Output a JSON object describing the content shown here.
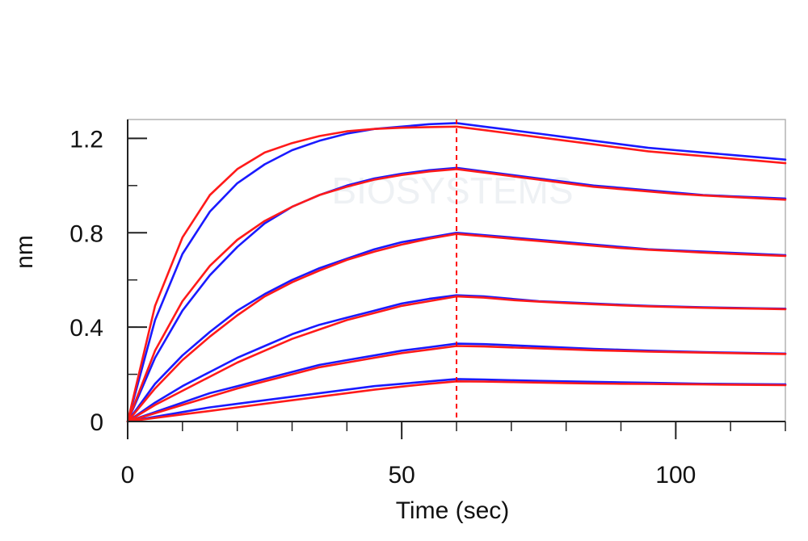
{
  "chart_data": {
    "type": "line",
    "title": "",
    "xlabel": "Time (sec)",
    "ylabel": "nm",
    "xlim": [
      0,
      120
    ],
    "ylim": [
      0,
      1.28
    ],
    "x_ticks": [
      0,
      50,
      100
    ],
    "x_tick_labels": [
      "0",
      "50",
      "100"
    ],
    "y_ticks": [
      0,
      0.4,
      0.8,
      1.2
    ],
    "y_tick_labels": [
      "0",
      "0.4",
      "0.8",
      "1.2"
    ],
    "x_minor_step": 10,
    "y_minor_step": 0.2,
    "grid": false,
    "legend": "none",
    "annotations": [
      {
        "type": "vertical-dashed-line",
        "x": 60,
        "color": "#ff0000",
        "meaning": "association/dissociation boundary"
      }
    ],
    "watermark": "BIOSYSTEMS",
    "colors": {
      "measured": "#1a1aff",
      "fit": "#ff1a1a",
      "marker": "#ff0000"
    },
    "series": [
      {
        "kind": "measured",
        "values": {
          "time": [
            0,
            5,
            10,
            15,
            20,
            25,
            30,
            35,
            40,
            45,
            50,
            55,
            60,
            65,
            70,
            75,
            80,
            85,
            90,
            95,
            100,
            105,
            110,
            115,
            120
          ],
          "nm": [
            0.0,
            0.43,
            0.71,
            0.89,
            1.01,
            1.09,
            1.15,
            1.19,
            1.22,
            1.24,
            1.25,
            1.26,
            1.265,
            1.25,
            1.235,
            1.22,
            1.205,
            1.19,
            1.175,
            1.16,
            1.15,
            1.14,
            1.13,
            1.12,
            1.11
          ]
        }
      },
      {
        "kind": "fit",
        "values": {
          "time": [
            0,
            5,
            10,
            15,
            20,
            25,
            30,
            35,
            40,
            45,
            50,
            55,
            60,
            65,
            70,
            75,
            80,
            85,
            90,
            95,
            100,
            105,
            110,
            115,
            120
          ],
          "nm": [
            0.0,
            0.49,
            0.78,
            0.96,
            1.07,
            1.14,
            1.18,
            1.21,
            1.23,
            1.24,
            1.245,
            1.248,
            1.25,
            1.235,
            1.22,
            1.205,
            1.19,
            1.175,
            1.16,
            1.145,
            1.135,
            1.125,
            1.115,
            1.105,
            1.095
          ]
        }
      },
      {
        "kind": "measured",
        "values": {
          "time": [
            0,
            5,
            10,
            15,
            20,
            25,
            30,
            35,
            40,
            45,
            50,
            55,
            60,
            65,
            70,
            75,
            80,
            85,
            90,
            95,
            100,
            105,
            110,
            115,
            120
          ],
          "nm": [
            0.0,
            0.27,
            0.47,
            0.62,
            0.74,
            0.84,
            0.91,
            0.96,
            1.0,
            1.03,
            1.05,
            1.065,
            1.075,
            1.06,
            1.045,
            1.03,
            1.015,
            1.0,
            0.99,
            0.98,
            0.97,
            0.96,
            0.955,
            0.95,
            0.945
          ]
        }
      },
      {
        "kind": "fit",
        "values": {
          "time": [
            0,
            5,
            10,
            15,
            20,
            25,
            30,
            35,
            40,
            45,
            50,
            55,
            60,
            65,
            70,
            75,
            80,
            85,
            90,
            95,
            100,
            105,
            110,
            115,
            120
          ],
          "nm": [
            0.0,
            0.3,
            0.51,
            0.66,
            0.77,
            0.85,
            0.91,
            0.96,
            0.995,
            1.025,
            1.045,
            1.06,
            1.07,
            1.055,
            1.04,
            1.025,
            1.01,
            0.995,
            0.985,
            0.975,
            0.965,
            0.958,
            0.952,
            0.946,
            0.94
          ]
        }
      },
      {
        "kind": "measured",
        "values": {
          "time": [
            0,
            5,
            10,
            15,
            20,
            25,
            30,
            35,
            40,
            45,
            50,
            55,
            60,
            65,
            70,
            75,
            80,
            85,
            90,
            95,
            100,
            105,
            110,
            115,
            120
          ],
          "nm": [
            0.0,
            0.16,
            0.28,
            0.38,
            0.47,
            0.54,
            0.6,
            0.65,
            0.69,
            0.73,
            0.76,
            0.78,
            0.8,
            0.79,
            0.78,
            0.77,
            0.76,
            0.75,
            0.74,
            0.73,
            0.725,
            0.72,
            0.715,
            0.71,
            0.705
          ]
        }
      },
      {
        "kind": "fit",
        "values": {
          "time": [
            0,
            5,
            10,
            15,
            20,
            25,
            30,
            35,
            40,
            45,
            50,
            55,
            60,
            65,
            70,
            75,
            80,
            85,
            90,
            95,
            100,
            105,
            110,
            115,
            120
          ],
          "nm": [
            0.0,
            0.14,
            0.26,
            0.36,
            0.45,
            0.53,
            0.59,
            0.64,
            0.685,
            0.72,
            0.75,
            0.775,
            0.795,
            0.785,
            0.775,
            0.765,
            0.755,
            0.745,
            0.735,
            0.728,
            0.722,
            0.716,
            0.711,
            0.706,
            0.702
          ]
        }
      },
      {
        "kind": "measured",
        "values": {
          "time": [
            0,
            5,
            10,
            15,
            20,
            25,
            30,
            35,
            40,
            45,
            50,
            55,
            60,
            65,
            70,
            75,
            80,
            85,
            90,
            95,
            100,
            105,
            110,
            115,
            120
          ],
          "nm": [
            0.0,
            0.08,
            0.15,
            0.21,
            0.27,
            0.32,
            0.37,
            0.41,
            0.44,
            0.47,
            0.5,
            0.52,
            0.535,
            0.53,
            0.52,
            0.51,
            0.505,
            0.5,
            0.495,
            0.49,
            0.487,
            0.484,
            0.482,
            0.48,
            0.478
          ]
        }
      },
      {
        "kind": "fit",
        "values": {
          "time": [
            0,
            5,
            10,
            15,
            20,
            25,
            30,
            35,
            40,
            45,
            50,
            55,
            60,
            65,
            70,
            75,
            80,
            85,
            90,
            95,
            100,
            105,
            110,
            115,
            120
          ],
          "nm": [
            0.0,
            0.07,
            0.13,
            0.19,
            0.25,
            0.3,
            0.35,
            0.39,
            0.43,
            0.46,
            0.49,
            0.51,
            0.53,
            0.525,
            0.515,
            0.508,
            0.502,
            0.497,
            0.492,
            0.488,
            0.485,
            0.482,
            0.48,
            0.478,
            0.476
          ]
        }
      },
      {
        "kind": "measured",
        "values": {
          "time": [
            0,
            5,
            10,
            15,
            20,
            25,
            30,
            35,
            40,
            45,
            50,
            55,
            60,
            65,
            70,
            75,
            80,
            85,
            90,
            95,
            100,
            105,
            110,
            115,
            120
          ],
          "nm": [
            0.0,
            0.04,
            0.08,
            0.12,
            0.15,
            0.18,
            0.21,
            0.24,
            0.26,
            0.28,
            0.3,
            0.315,
            0.33,
            0.328,
            0.323,
            0.318,
            0.313,
            0.308,
            0.304,
            0.3,
            0.297,
            0.294,
            0.292,
            0.29,
            0.288
          ]
        }
      },
      {
        "kind": "fit",
        "values": {
          "time": [
            0,
            5,
            10,
            15,
            20,
            25,
            30,
            35,
            40,
            45,
            50,
            55,
            60,
            65,
            70,
            75,
            80,
            85,
            90,
            95,
            100,
            105,
            110,
            115,
            120
          ],
          "nm": [
            0.0,
            0.035,
            0.07,
            0.105,
            0.14,
            0.17,
            0.2,
            0.23,
            0.25,
            0.27,
            0.29,
            0.305,
            0.32,
            0.318,
            0.314,
            0.31,
            0.306,
            0.302,
            0.299,
            0.296,
            0.294,
            0.292,
            0.29,
            0.288,
            0.286
          ]
        }
      },
      {
        "kind": "measured",
        "values": {
          "time": [
            0,
            5,
            10,
            15,
            20,
            25,
            30,
            35,
            40,
            45,
            50,
            55,
            60,
            65,
            70,
            75,
            80,
            85,
            90,
            95,
            100,
            105,
            110,
            115,
            120
          ],
          "nm": [
            0.0,
            0.02,
            0.04,
            0.06,
            0.075,
            0.09,
            0.105,
            0.12,
            0.135,
            0.15,
            0.16,
            0.17,
            0.18,
            0.178,
            0.175,
            0.172,
            0.17,
            0.168,
            0.166,
            0.164,
            0.162,
            0.16,
            0.159,
            0.158,
            0.157
          ]
        }
      },
      {
        "kind": "fit",
        "values": {
          "time": [
            0,
            5,
            10,
            15,
            20,
            25,
            30,
            35,
            40,
            45,
            50,
            55,
            60,
            65,
            70,
            75,
            80,
            85,
            90,
            95,
            100,
            105,
            110,
            115,
            120
          ],
          "nm": [
            0.0,
            0.015,
            0.03,
            0.045,
            0.06,
            0.075,
            0.09,
            0.105,
            0.12,
            0.135,
            0.148,
            0.16,
            0.17,
            0.169,
            0.167,
            0.165,
            0.163,
            0.161,
            0.16,
            0.159,
            0.158,
            0.157,
            0.156,
            0.155,
            0.154
          ]
        }
      }
    ]
  }
}
